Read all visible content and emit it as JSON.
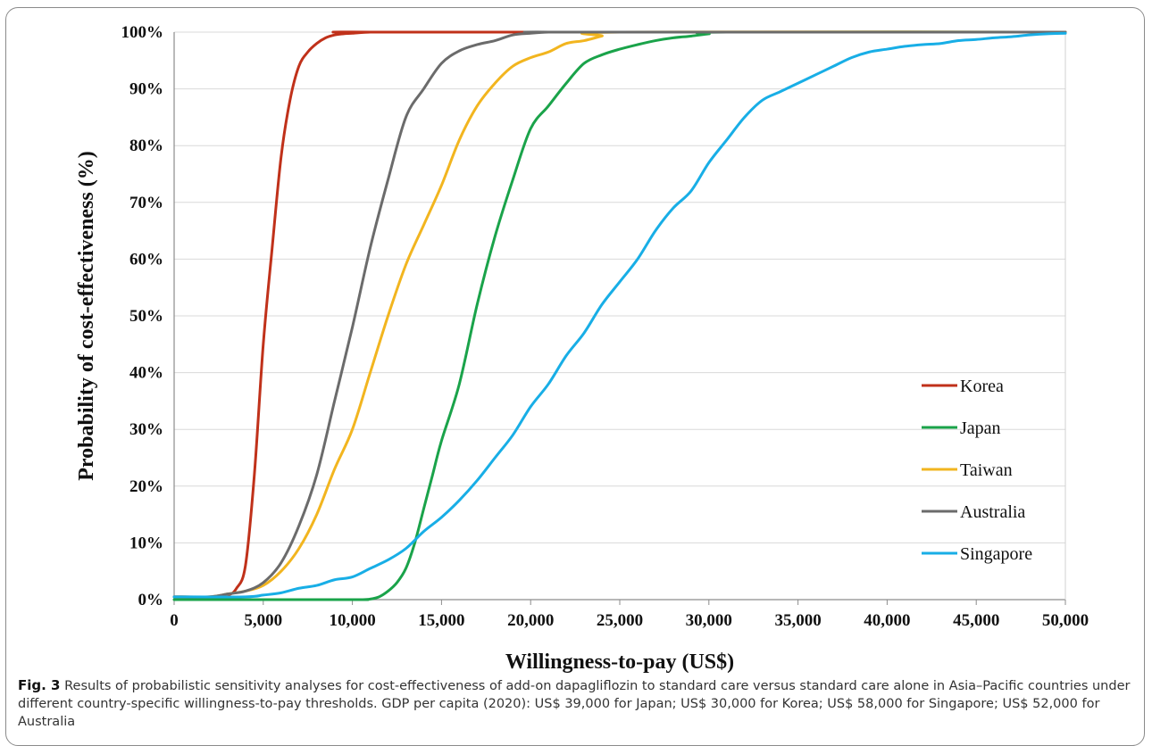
{
  "chart_data": {
    "type": "line",
    "xlabel": "Willingness-to-pay (US$)",
    "ylabel": "Probability of cost-effectiveness (%)",
    "xlim": [
      0,
      50000
    ],
    "ylim": [
      0,
      100
    ],
    "x_ticks": [
      0,
      5000,
      10000,
      15000,
      20000,
      25000,
      30000,
      35000,
      40000,
      45000,
      50000
    ],
    "x_tick_labels": [
      "0",
      "5,000",
      "10,000",
      "15,000",
      "20,000",
      "25,000",
      "30,000",
      "35,000",
      "40,000",
      "45,000",
      "50,000"
    ],
    "y_ticks": [
      0,
      10,
      20,
      30,
      40,
      50,
      60,
      70,
      80,
      90,
      100
    ],
    "y_tick_labels": [
      "0%",
      "10%",
      "20%",
      "30%",
      "40%",
      "50%",
      "60%",
      "70%",
      "80%",
      "90%",
      "100%"
    ],
    "grid": "horizontal",
    "legend_position": "right",
    "series": [
      {
        "name": "Korea",
        "color": "#c0311a",
        "x": [
          0,
          2000,
          3000,
          3500,
          4000,
          4500,
          5000,
          5500,
          6000,
          6500,
          7000,
          7500,
          8000,
          8500,
          9000,
          9500,
          10000,
          11000,
          12000,
          50000
        ],
        "y": [
          0.5,
          0.5,
          0.8,
          2,
          6,
          22,
          45,
          62,
          78,
          88,
          94,
          96.5,
          98,
          99,
          99.5,
          99.7,
          99.8,
          100,
          100,
          100
        ]
      },
      {
        "name": "Japan",
        "color": "#1aa34a",
        "x": [
          0,
          10000,
          10500,
          11000,
          11500,
          12000,
          12500,
          13000,
          13500,
          14000,
          14500,
          15000,
          16000,
          17000,
          18000,
          19000,
          20000,
          21000,
          22000,
          23000,
          24000,
          25000,
          26000,
          27000,
          28000,
          29000,
          30000,
          31000,
          50000
        ],
        "y": [
          0,
          0,
          0,
          0.1,
          0.5,
          1.5,
          3,
          5.5,
          10,
          16,
          22,
          28,
          38,
          52,
          64,
          74,
          83,
          87,
          91,
          94.5,
          96,
          97,
          97.8,
          98.5,
          99,
          99.3,
          99.7,
          100,
          100
        ]
      },
      {
        "name": "Taiwan",
        "color": "#f2b51f",
        "x": [
          0,
          2000,
          3000,
          4000,
          5000,
          6000,
          7000,
          8000,
          9000,
          10000,
          11000,
          12000,
          13000,
          14000,
          15000,
          16000,
          17000,
          18000,
          19000,
          20000,
          21000,
          22000,
          23000,
          24000,
          25000,
          50000
        ],
        "y": [
          0.5,
          0.5,
          1,
          1.5,
          2.5,
          5,
          9,
          15,
          23,
          30,
          40,
          50,
          59,
          66,
          73,
          81,
          87,
          91,
          94,
          95.5,
          96.5,
          98,
          98.5,
          99.3,
          100,
          100
        ]
      },
      {
        "name": "Australia",
        "color": "#6b6b6b",
        "x": [
          0,
          2000,
          3000,
          4000,
          5000,
          6000,
          7000,
          8000,
          9000,
          10000,
          11000,
          12000,
          13000,
          14000,
          15000,
          16000,
          17000,
          18000,
          19000,
          20000,
          21000,
          22000,
          50000
        ],
        "y": [
          0.5,
          0.5,
          1,
          1.5,
          3,
          6.5,
          13,
          22,
          35,
          48,
          62,
          74,
          85,
          90,
          94.5,
          96.7,
          97.8,
          98.5,
          99.5,
          99.8,
          100,
          100,
          100
        ]
      },
      {
        "name": "Singapore",
        "color": "#18aee6",
        "x": [
          0,
          4000,
          5000,
          6000,
          7000,
          8000,
          9000,
          10000,
          11000,
          12000,
          13000,
          14000,
          15000,
          16000,
          17000,
          18000,
          19000,
          20000,
          21000,
          22000,
          23000,
          24000,
          25000,
          26000,
          27000,
          28000,
          29000,
          30000,
          31000,
          32000,
          33000,
          34000,
          35000,
          36000,
          37000,
          38000,
          39000,
          40000,
          41000,
          42000,
          43000,
          44000,
          45000,
          46000,
          47000,
          48000,
          49000,
          50000
        ],
        "y": [
          0.5,
          0.5,
          0.8,
          1.2,
          2,
          2.5,
          3.5,
          4,
          5.5,
          7,
          9,
          12,
          14.5,
          17.5,
          21,
          25,
          29,
          34,
          38,
          43,
          47,
          52,
          56,
          60,
          65,
          69,
          72,
          77,
          81,
          85,
          88,
          89.5,
          91,
          92.5,
          94,
          95.5,
          96.5,
          97,
          97.5,
          97.8,
          98,
          98.5,
          98.7,
          99,
          99.2,
          99.5,
          99.7,
          99.8
        ]
      }
    ]
  },
  "caption": {
    "label": "Fig. 3",
    "text": "Results of probabilistic sensitivity analyses for cost-effectiveness of add-on dapagliflozin to standard care versus standard care alone in Asia–Pacific countries under different country-specific willingness-to-pay thresholds. GDP per capita (2020): US$ 39,000 for Japan; US$ 30,000 for Korea; US$ 58,000 for Singapore; US$ 52,000 for Australia"
  }
}
